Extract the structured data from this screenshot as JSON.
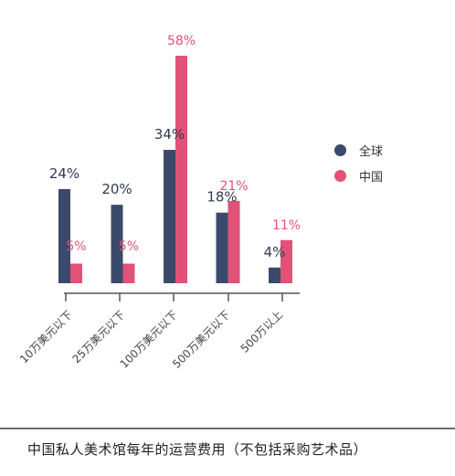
{
  "chart_data": {
    "type": "bar",
    "categories": [
      "10万美元以下",
      "25万美元以下",
      "100万美元以下",
      "500万美元以下",
      "500万以上"
    ],
    "series": [
      {
        "name": "全球",
        "values": [
          24,
          20,
          34,
          18,
          4
        ],
        "labels": [
          "24%",
          "20%",
          "34%",
          "18%",
          "4%"
        ],
        "color": "#3b4a6b"
      },
      {
        "name": "中国",
        "values": [
          5,
          5,
          58,
          21,
          11
        ],
        "labels": [
          "5%",
          "5%",
          "58%",
          "21%",
          "11%"
        ],
        "color": "#e05277"
      }
    ],
    "ylim": [
      0,
      58
    ],
    "grid": false,
    "legend": "right"
  },
  "caption": "中国私人美术馆每年的运营费用（不包括采购艺术品）"
}
